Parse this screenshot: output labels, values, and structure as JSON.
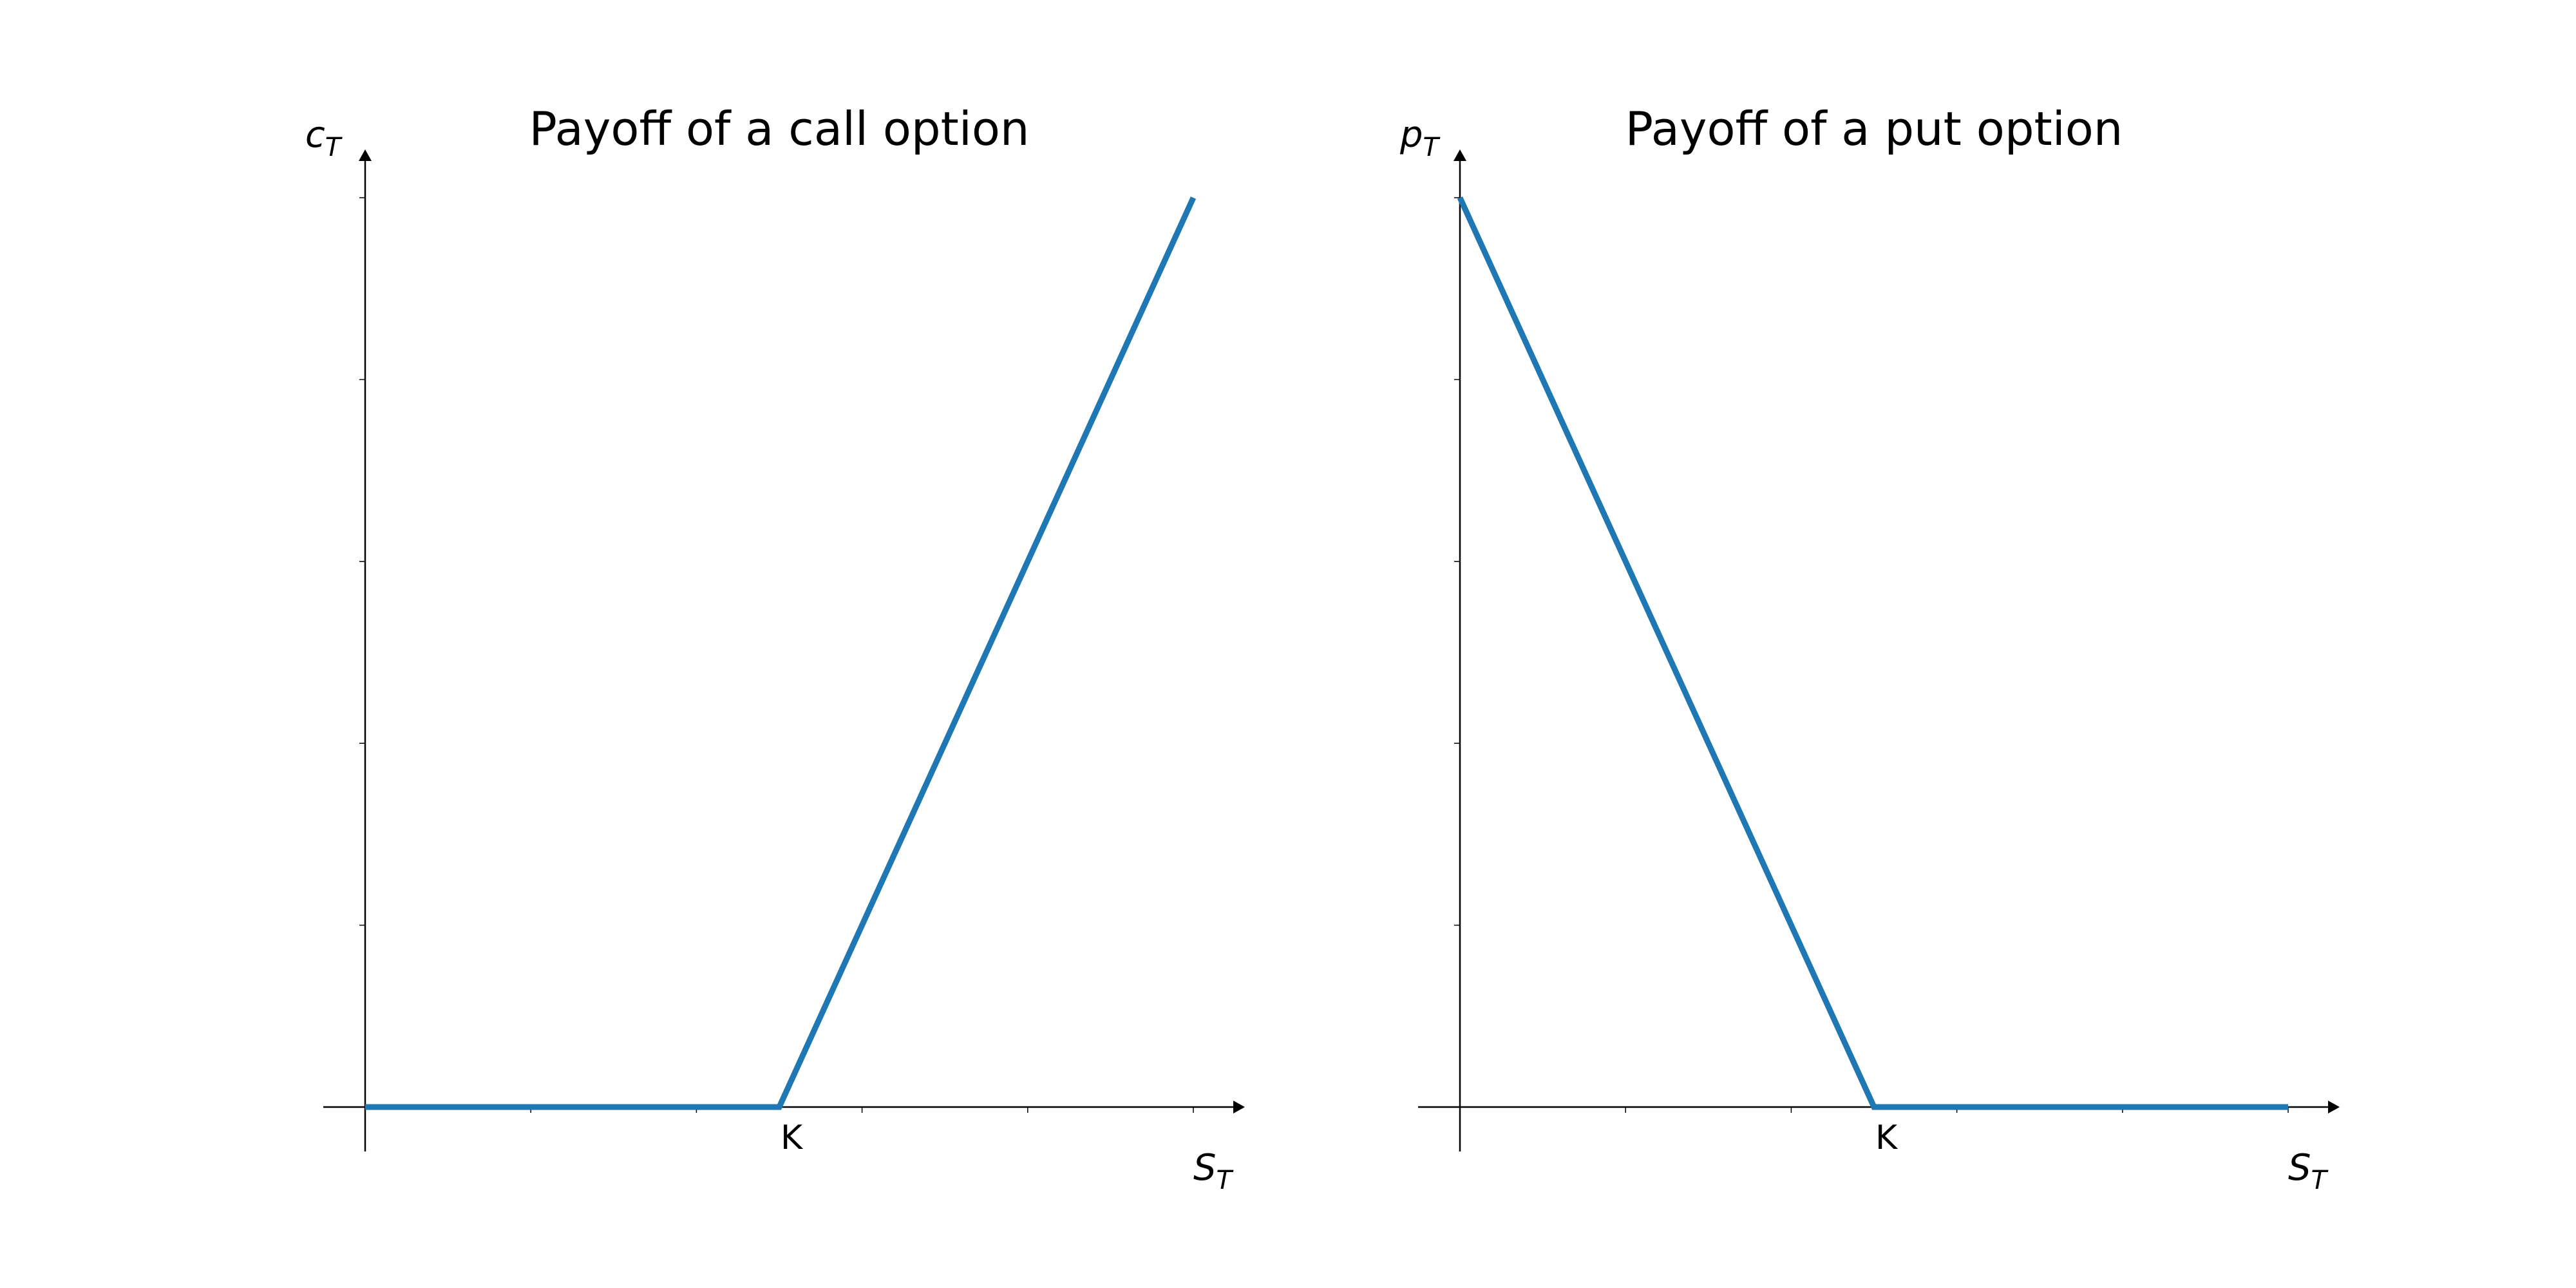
{
  "chart_data": [
    {
      "type": "line",
      "title": "Payoff of a call option",
      "xlabel": {
        "main": "S",
        "sub": "T"
      },
      "ylabel": {
        "main": "c",
        "sub": "T"
      },
      "xlim": [
        0,
        5
      ],
      "ylim": [
        0,
        5
      ],
      "x_tick_values": [
        0,
        1,
        2,
        3,
        4,
        5
      ],
      "y_tick_values": [
        0,
        1,
        2,
        3,
        4,
        5
      ],
      "x_tick_labels": [
        {
          "value": 2.5,
          "label": "K"
        }
      ],
      "series": [
        {
          "x": [
            0,
            2.5,
            5
          ],
          "y": [
            0,
            0,
            5
          ],
          "color": "#1f77b4"
        }
      ],
      "grid": false,
      "legend": "none"
    },
    {
      "type": "line",
      "title": "Payoff of a put option",
      "xlabel": {
        "main": "S",
        "sub": "T"
      },
      "ylabel": {
        "main": "p",
        "sub": "T"
      },
      "xlim": [
        0,
        5
      ],
      "ylim": [
        0,
        5
      ],
      "x_tick_values": [
        0,
        1,
        2,
        3,
        4,
        5
      ],
      "y_tick_values": [
        0,
        1,
        2,
        3,
        4,
        5
      ],
      "x_tick_labels": [
        {
          "value": 2.5,
          "label": "K"
        }
      ],
      "series": [
        {
          "x": [
            0,
            2.5,
            5
          ],
          "y": [
            5,
            0,
            0
          ],
          "color": "#1f77b4"
        }
      ],
      "grid": false,
      "legend": "none"
    }
  ]
}
